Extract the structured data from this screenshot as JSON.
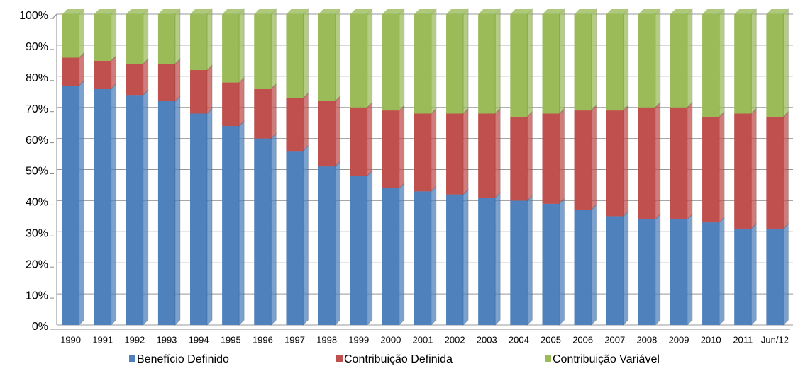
{
  "chart_data": {
    "type": "stacked_bar",
    "categories": [
      "1990",
      "1991",
      "1992",
      "1993",
      "1994",
      "1995",
      "1996",
      "1997",
      "1998",
      "1999",
      "2000",
      "2001",
      "2002",
      "2003",
      "2004",
      "2005",
      "2006",
      "2007",
      "2008",
      "2009",
      "2010",
      "2011",
      "Jun/12"
    ],
    "series": [
      {
        "name": "Benefício Definido",
        "color": "#4f81bd",
        "values": [
          77,
          76,
          74,
          72,
          68,
          64,
          60,
          56,
          51,
          48,
          44,
          43,
          42,
          41,
          40,
          39,
          37,
          35,
          34,
          34,
          33,
          31,
          31
        ]
      },
      {
        "name": "Contribuição Definida",
        "color": "#c0504d",
        "values": [
          9,
          9,
          10,
          12,
          14,
          14,
          16,
          17,
          21,
          22,
          25,
          25,
          26,
          27,
          27,
          29,
          32,
          34,
          36,
          36,
          34,
          37,
          36
        ]
      },
      {
        "name": "Contribuição Variável",
        "color": "#9bbb59",
        "values": [
          14,
          15,
          16,
          16,
          18,
          22,
          24,
          27,
          28,
          30,
          31,
          32,
          32,
          32,
          33,
          32,
          31,
          31,
          30,
          30,
          33,
          32,
          33
        ]
      }
    ],
    "ylim": [
      0,
      100
    ],
    "yticks": [
      {
        "value": 0,
        "label": "0%"
      },
      {
        "value": 10,
        "label": "10%"
      },
      {
        "value": 20,
        "label": "20%"
      },
      {
        "value": 30,
        "label": "30%"
      },
      {
        "value": 40,
        "label": "40%"
      },
      {
        "value": 50,
        "label": "50%"
      },
      {
        "value": 60,
        "label": "60%"
      },
      {
        "value": 70,
        "label": "70%"
      },
      {
        "value": 80,
        "label": "80%"
      },
      {
        "value": 90,
        "label": "90%"
      },
      {
        "value": 100,
        "label": "100%"
      }
    ],
    "grid": true,
    "legend": "bottom"
  }
}
